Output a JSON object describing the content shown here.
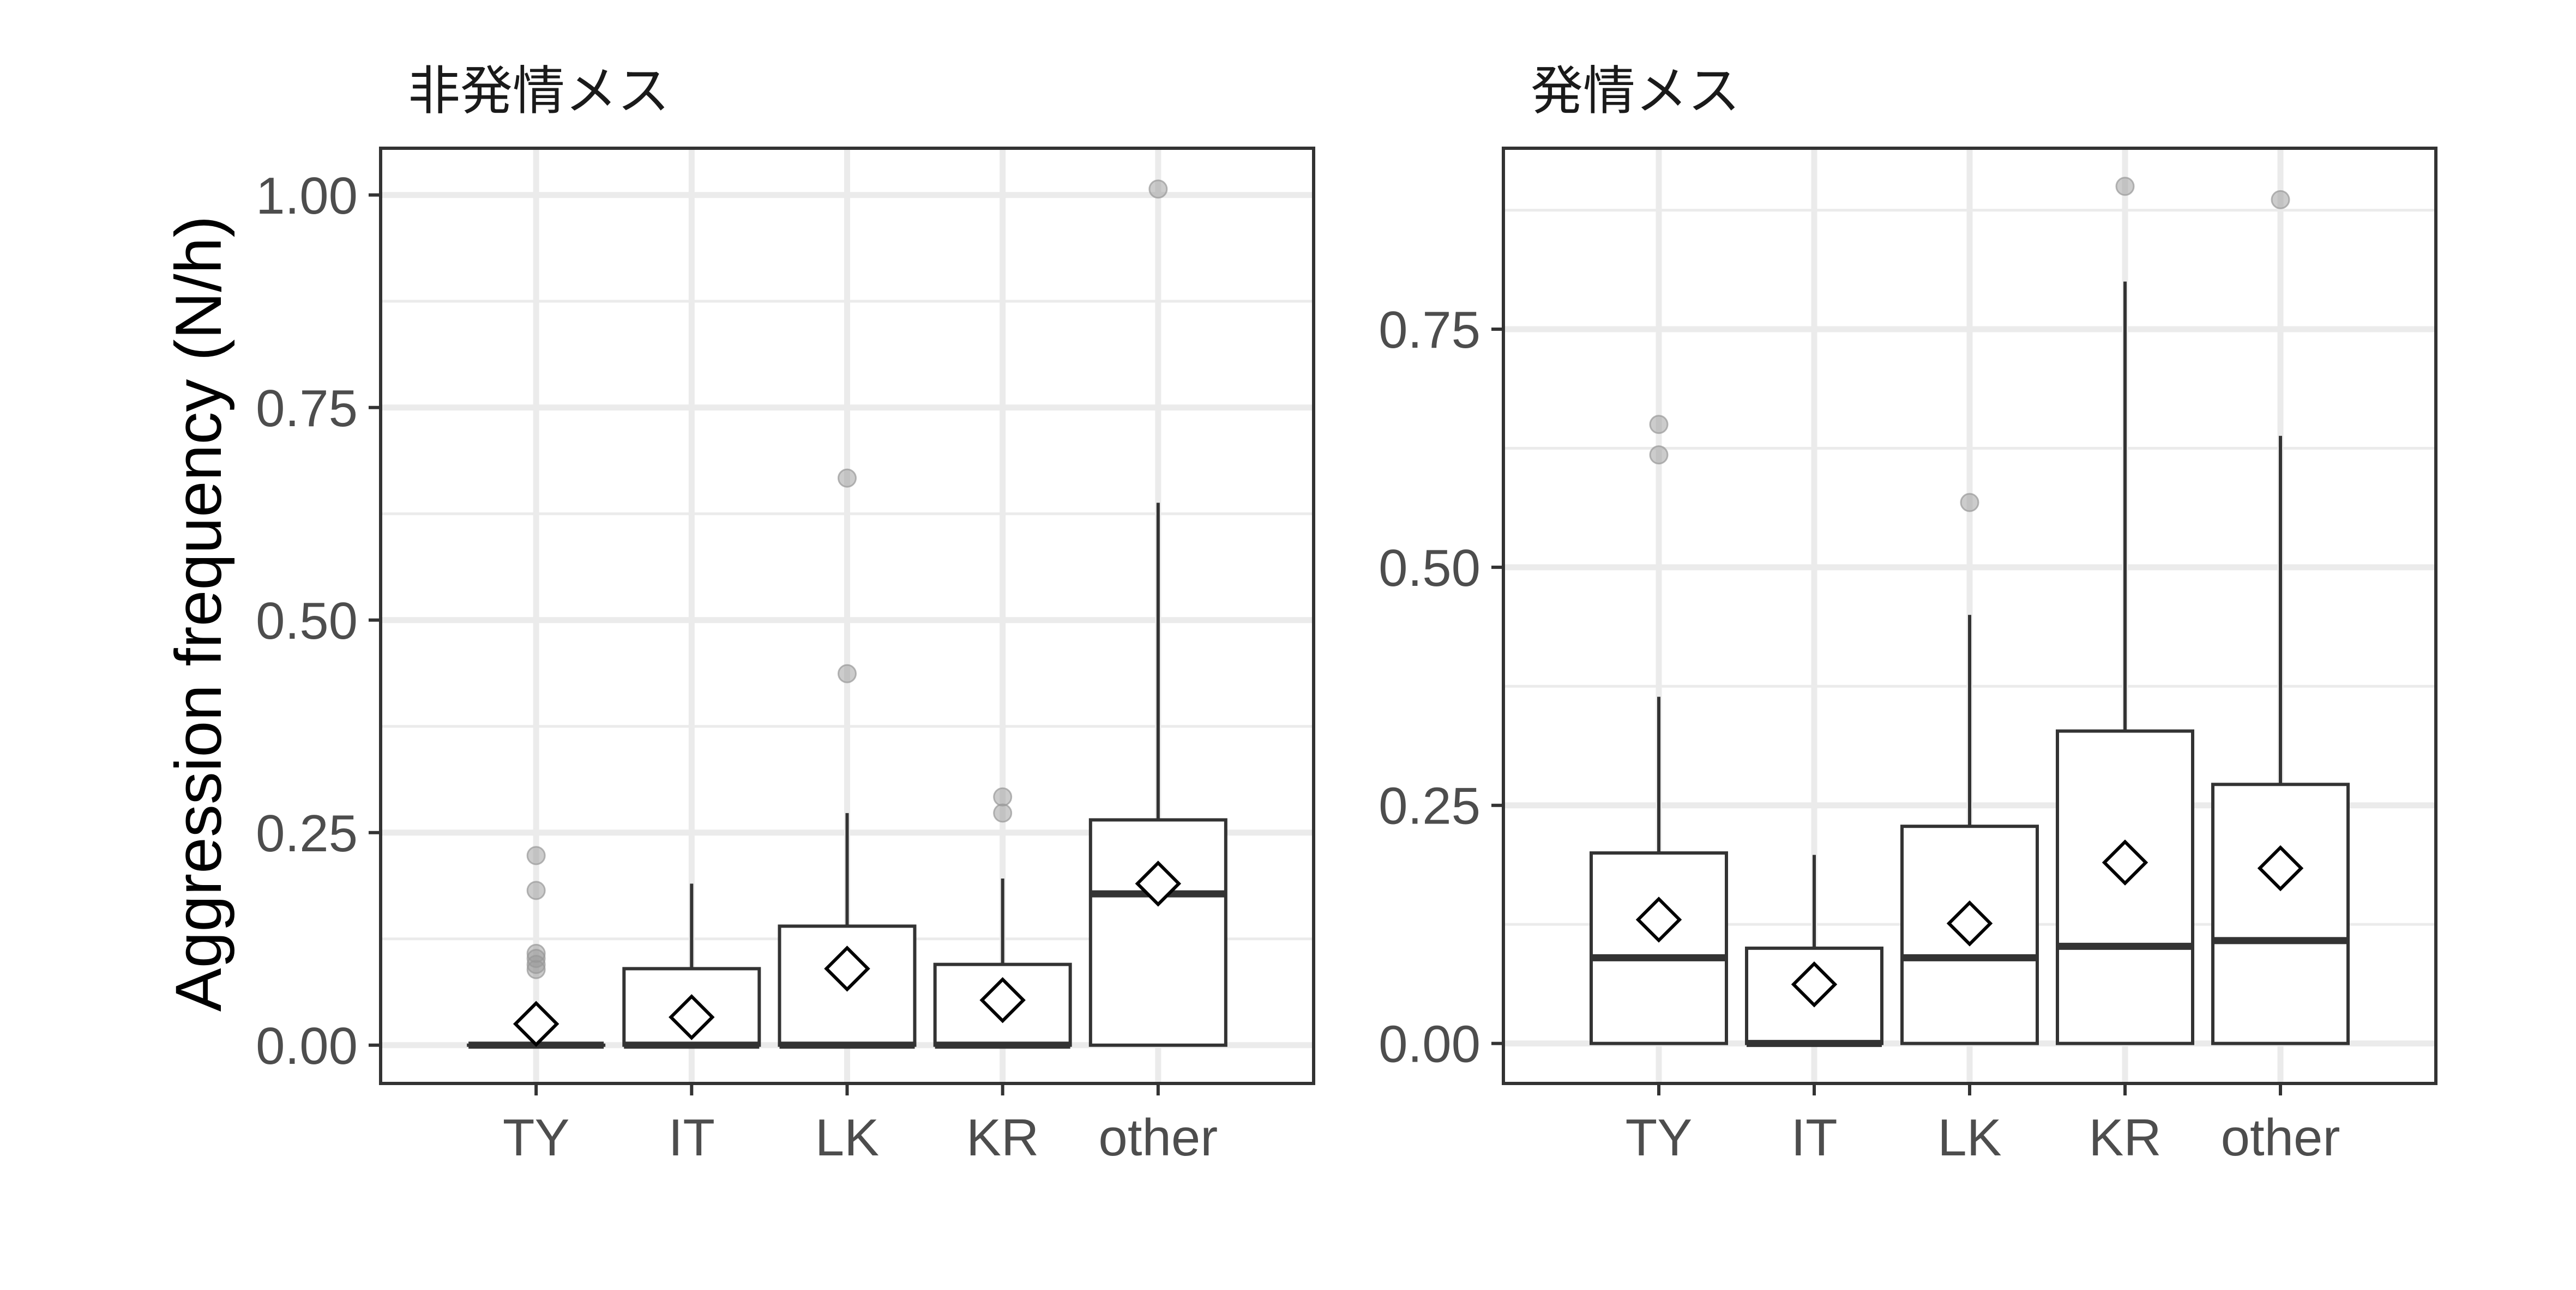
{
  "chart_data": {
    "type": "box",
    "ylabel": "Aggression frequency (N/h)",
    "categories": [
      "TY",
      "IT",
      "LK",
      "KR",
      "other"
    ],
    "colors": {
      "box_stroke": "#333333",
      "grid": "#ebebeb",
      "outlier": "#999999",
      "panel_border": "#333333",
      "background": "#ffffff"
    },
    "mean_marker": "diamond",
    "grid": true,
    "panels": [
      {
        "title": "非発情メス",
        "ylim": [
          -0.045,
          1.055
        ],
        "yticks": [
          0.0,
          0.25,
          0.5,
          0.75,
          1.0
        ],
        "ytick_labels": [
          "0.00",
          "0.25",
          "0.50",
          "0.75",
          "1.00"
        ],
        "boxes": [
          {
            "category": "TY",
            "q1": 0.0,
            "median": 0.0,
            "q3": 0.0,
            "whisker_low": 0.0,
            "whisker_high": 0.0,
            "mean": 0.025,
            "outliers": [
              0.223,
              0.182,
              0.108,
              0.102,
              0.095,
              0.089
            ]
          },
          {
            "category": "IT",
            "q1": 0.0,
            "median": 0.0,
            "q3": 0.09,
            "whisker_low": 0.0,
            "whisker_high": 0.19,
            "mean": 0.033,
            "outliers": []
          },
          {
            "category": "LK",
            "q1": 0.0,
            "median": 0.0,
            "q3": 0.14,
            "whisker_low": 0.0,
            "whisker_high": 0.273,
            "mean": 0.09,
            "outliers": [
              0.667,
              0.437
            ]
          },
          {
            "category": "KR",
            "q1": 0.0,
            "median": 0.0,
            "q3": 0.095,
            "whisker_low": 0.0,
            "whisker_high": 0.196,
            "mean": 0.053,
            "outliers": [
              0.292,
              0.273
            ]
          },
          {
            "category": "other",
            "q1": 0.0,
            "median": 0.178,
            "q3": 0.265,
            "whisker_low": 0.0,
            "whisker_high": 0.638,
            "mean": 0.19,
            "outliers": [
              1.007
            ]
          }
        ]
      },
      {
        "title": "発情メス",
        "ylim": [
          -0.042,
          0.94
        ],
        "yticks": [
          0.0,
          0.25,
          0.5,
          0.75
        ],
        "ytick_labels": [
          "0.00",
          "0.25",
          "0.50",
          "0.75"
        ],
        "boxes": [
          {
            "category": "TY",
            "q1": 0.0,
            "median": 0.09,
            "q3": 0.2,
            "whisker_low": 0.0,
            "whisker_high": 0.364,
            "mean": 0.13,
            "outliers": [
              0.65,
              0.618
            ]
          },
          {
            "category": "IT",
            "q1": 0.0,
            "median": 0.0,
            "q3": 0.1,
            "whisker_low": 0.0,
            "whisker_high": 0.198,
            "mean": 0.062,
            "outliers": []
          },
          {
            "category": "LK",
            "q1": 0.0,
            "median": 0.09,
            "q3": 0.228,
            "whisker_low": 0.0,
            "whisker_high": 0.45,
            "mean": 0.126,
            "outliers": [
              0.568
            ]
          },
          {
            "category": "KR",
            "q1": 0.0,
            "median": 0.102,
            "q3": 0.328,
            "whisker_low": 0.0,
            "whisker_high": 0.8,
            "mean": 0.19,
            "outliers": [
              0.9
            ]
          },
          {
            "category": "other",
            "q1": 0.0,
            "median": 0.108,
            "q3": 0.272,
            "whisker_low": 0.0,
            "whisker_high": 0.638,
            "mean": 0.184,
            "outliers": [
              0.886
            ]
          }
        ]
      }
    ]
  }
}
